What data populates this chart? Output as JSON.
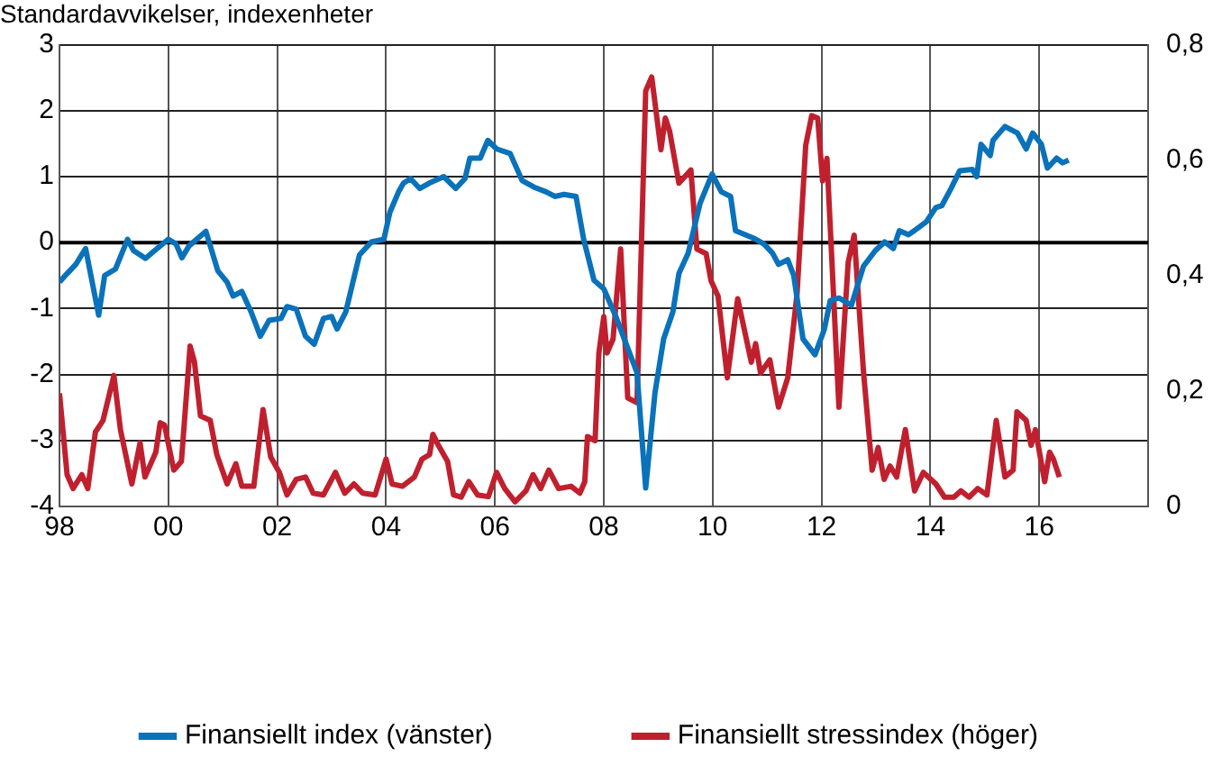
{
  "chart_data": {
    "type": "line",
    "title": "Standardavvikelser, indexenheter",
    "xlim": [
      1998,
      2018
    ],
    "xticks": [
      {
        "value": 1998,
        "label": "98"
      },
      {
        "value": 2000,
        "label": "00"
      },
      {
        "value": 2002,
        "label": "02"
      },
      {
        "value": 2004,
        "label": "04"
      },
      {
        "value": 2006,
        "label": "06"
      },
      {
        "value": 2008,
        "label": "08"
      },
      {
        "value": 2010,
        "label": "10"
      },
      {
        "value": 2012,
        "label": "12"
      },
      {
        "value": 2014,
        "label": "14"
      },
      {
        "value": 2016,
        "label": "16"
      },
      {
        "value": 2018,
        "label": null
      }
    ],
    "ylim": [
      -4,
      3
    ],
    "yticks": [
      -4,
      -3,
      -2,
      -1,
      0,
      1,
      2,
      3
    ],
    "y2lim": [
      0,
      0.8
    ],
    "y2ticks": [
      0,
      {
        "value": 0.2,
        "label": "0,2"
      },
      {
        "value": 0.4,
        "label": "0,4"
      },
      {
        "value": 0.6,
        "label": "0,6"
      },
      {
        "value": 0.8,
        "label": "0,8"
      }
    ],
    "grid": true,
    "legend": "bottom",
    "marker": "none",
    "line_style": "solid",
    "ref_lines": [
      {
        "axis": "y",
        "value": 0,
        "color": "#000000"
      }
    ],
    "series": [
      {
        "name": "Finansiellt index (vänster)",
        "color": "#0a72ba",
        "x": [
          1998.0,
          1998.14,
          1998.3,
          1998.48,
          1998.72,
          1998.83,
          1999.03,
          1999.25,
          1999.36,
          1999.58,
          1999.75,
          2000.0,
          2000.14,
          2000.25,
          2000.38,
          2000.69,
          2000.91,
          2001.08,
          2001.19,
          2001.35,
          2001.52,
          2001.69,
          2001.85,
          2002.07,
          2002.18,
          2002.35,
          2002.52,
          2002.68,
          2002.85,
          2003.0,
          2003.1,
          2003.26,
          2003.51,
          2003.73,
          2003.96,
          2004.07,
          2004.23,
          2004.32,
          2004.45,
          2004.62,
          2004.79,
          2005.06,
          2005.28,
          2005.45,
          2005.54,
          2005.73,
          2005.87,
          2006.03,
          2006.28,
          2006.5,
          2006.72,
          2006.94,
          2007.1,
          2007.27,
          2007.49,
          2007.63,
          2007.82,
          2008.0,
          2008.22,
          2008.44,
          2008.61,
          2008.77,
          2008.94,
          2009.1,
          2009.27,
          2009.38,
          2009.55,
          2009.77,
          2009.99,
          2010.16,
          2010.33,
          2010.42,
          2010.6,
          2010.77,
          2010.94,
          2011.1,
          2011.21,
          2011.38,
          2011.49,
          2011.66,
          2011.88,
          2012.05,
          2012.16,
          2012.32,
          2012.55,
          2012.77,
          2012.99,
          2013.16,
          2013.32,
          2013.43,
          2013.6,
          2013.77,
          2013.93,
          2014.1,
          2014.21,
          2014.38,
          2014.54,
          2014.77,
          2014.85,
          2014.93,
          2015.1,
          2015.15,
          2015.37,
          2015.6,
          2015.76,
          2015.88,
          2016.04,
          2016.15,
          2016.32,
          2016.43,
          2016.54
        ],
        "values": [
          -0.6,
          -0.47,
          -0.33,
          -0.09,
          -1.1,
          -0.5,
          -0.4,
          0.05,
          -0.12,
          -0.24,
          -0.12,
          0.05,
          -0.02,
          -0.23,
          -0.05,
          0.17,
          -0.43,
          -0.6,
          -0.81,
          -0.74,
          -1.05,
          -1.42,
          -1.18,
          -1.15,
          -0.97,
          -1.01,
          -1.42,
          -1.54,
          -1.15,
          -1.12,
          -1.31,
          -1.05,
          -0.19,
          0.01,
          0.05,
          0.46,
          0.77,
          0.9,
          0.97,
          0.82,
          0.9,
          1.0,
          0.82,
          0.97,
          1.28,
          1.28,
          1.55,
          1.42,
          1.35,
          0.94,
          0.84,
          0.77,
          0.7,
          0.73,
          0.7,
          0.05,
          -0.57,
          -0.7,
          -1.12,
          -1.6,
          -1.97,
          -3.72,
          -2.28,
          -1.46,
          -1.05,
          -0.47,
          -0.16,
          0.6,
          1.04,
          0.77,
          0.7,
          0.18,
          0.12,
          0.06,
          -0.02,
          -0.16,
          -0.33,
          -0.26,
          -0.5,
          -1.46,
          -1.7,
          -1.32,
          -0.88,
          -0.84,
          -0.95,
          -0.36,
          -0.12,
          0.01,
          -0.09,
          0.18,
          0.12,
          0.22,
          0.32,
          0.53,
          0.56,
          0.82,
          1.09,
          1.11,
          1.0,
          1.49,
          1.32,
          1.55,
          1.76,
          1.66,
          1.42,
          1.66,
          1.49,
          1.13,
          1.28,
          1.21,
          1.25
        ]
      },
      {
        "name": "Finansiellt stressindex (höger)",
        "color": "#c0202e",
        "axis": "y2",
        "x": [
          1998.0,
          1998.14,
          1998.25,
          1998.41,
          1998.52,
          1998.66,
          1998.8,
          1999.0,
          1999.12,
          1999.33,
          1999.48,
          1999.57,
          1999.77,
          1999.85,
          1999.93,
          2000.1,
          2000.24,
          2000.4,
          2000.48,
          2000.59,
          2000.77,
          2000.89,
          2001.08,
          2001.24,
          2001.35,
          2001.57,
          2001.74,
          2001.88,
          2002.04,
          2002.18,
          2002.35,
          2002.52,
          2002.66,
          2002.85,
          2003.07,
          2003.24,
          2003.41,
          2003.57,
          2003.8,
          2004.0,
          2004.11,
          2004.3,
          2004.52,
          2004.66,
          2004.8,
          2004.86,
          2004.96,
          2005.13,
          2005.24,
          2005.38,
          2005.52,
          2005.68,
          2005.88,
          2006.03,
          2006.18,
          2006.37,
          2006.57,
          2006.7,
          2006.84,
          2006.99,
          2007.17,
          2007.4,
          2007.56,
          2007.65,
          2007.7,
          2007.84,
          2007.91,
          2008.0,
          2008.06,
          2008.17,
          2008.31,
          2008.44,
          2008.61,
          2008.77,
          2008.88,
          2009.05,
          2009.13,
          2009.21,
          2009.38,
          2009.6,
          2009.71,
          2009.88,
          2009.97,
          2010.1,
          2010.27,
          2010.46,
          2010.71,
          2010.79,
          2010.88,
          2011.05,
          2011.21,
          2011.38,
          2011.55,
          2011.71,
          2011.82,
          2011.93,
          2012.02,
          2012.1,
          2012.32,
          2012.49,
          2012.6,
          2012.77,
          2012.93,
          2013.04,
          2013.15,
          2013.26,
          2013.38,
          2013.54,
          2013.71,
          2013.87,
          2014.1,
          2014.26,
          2014.43,
          2014.56,
          2014.71,
          2014.87,
          2015.04,
          2015.21,
          2015.37,
          2015.52,
          2015.59,
          2015.76,
          2015.85,
          2015.93,
          2016.1,
          2016.19,
          2016.26,
          2016.37
        ],
        "values": [
          0.196,
          0.055,
          0.031,
          0.055,
          0.031,
          0.129,
          0.149,
          0.227,
          0.133,
          0.039,
          0.11,
          0.051,
          0.094,
          0.145,
          0.141,
          0.063,
          0.078,
          0.278,
          0.25,
          0.157,
          0.149,
          0.09,
          0.039,
          0.074,
          0.035,
          0.035,
          0.168,
          0.086,
          0.059,
          0.02,
          0.047,
          0.051,
          0.023,
          0.02,
          0.059,
          0.023,
          0.039,
          0.023,
          0.02,
          0.082,
          0.039,
          0.035,
          0.051,
          0.082,
          0.09,
          0.125,
          0.106,
          0.078,
          0.02,
          0.016,
          0.043,
          0.02,
          0.017,
          0.059,
          0.031,
          0.008,
          0.027,
          0.055,
          0.031,
          0.063,
          0.031,
          0.035,
          0.023,
          0.043,
          0.121,
          0.114,
          0.266,
          0.329,
          0.266,
          0.29,
          0.446,
          0.188,
          0.18,
          0.72,
          0.744,
          0.618,
          0.673,
          0.65,
          0.56,
          0.583,
          0.446,
          0.438,
          0.391,
          0.364,
          0.223,
          0.36,
          0.25,
          0.282,
          0.231,
          0.254,
          0.172,
          0.223,
          0.368,
          0.626,
          0.677,
          0.673,
          0.564,
          0.603,
          0.172,
          0.423,
          0.47,
          0.235,
          0.063,
          0.102,
          0.047,
          0.07,
          0.051,
          0.133,
          0.027,
          0.059,
          0.039,
          0.016,
          0.016,
          0.027,
          0.016,
          0.031,
          0.02,
          0.149,
          0.051,
          0.063,
          0.164,
          0.149,
          0.106,
          0.133,
          0.043,
          0.094,
          0.082,
          0.051
        ]
      }
    ]
  }
}
